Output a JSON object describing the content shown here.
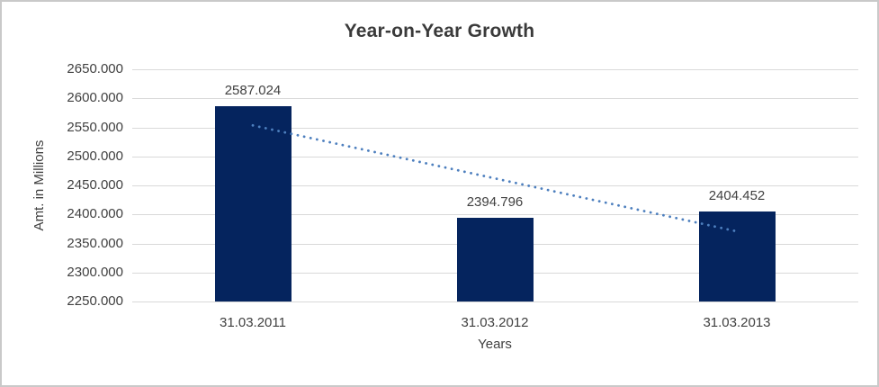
{
  "chart_data": {
    "type": "bar",
    "title": "Year-on-Year Growth",
    "xlabel": "Years",
    "ylabel": "Amt. in Millions",
    "categories": [
      "31.03.2011",
      "31.03.2012",
      "31.03.2013"
    ],
    "values": [
      2587.024,
      2394.796,
      2404.452
    ],
    "data_labels": [
      "2587.024",
      "2394.796",
      "2404.452"
    ],
    "ylim": [
      2250,
      2650
    ],
    "ytick_step": 50,
    "ytick_labels": [
      "2250.000",
      "2300.000",
      "2350.000",
      "2400.000",
      "2450.000",
      "2500.000",
      "2550.000",
      "2600.000",
      "2650.000"
    ],
    "grid": true,
    "legend": "none",
    "trendline": {
      "type": "linear",
      "style": "dotted",
      "color": "#4d7fbe"
    },
    "colors": {
      "bar": "#05245e",
      "gridline": "#d9d9d9",
      "text": "#404040",
      "title": "#3a3a3a",
      "border": "#c9c9c9",
      "background": "#ffffff"
    }
  }
}
